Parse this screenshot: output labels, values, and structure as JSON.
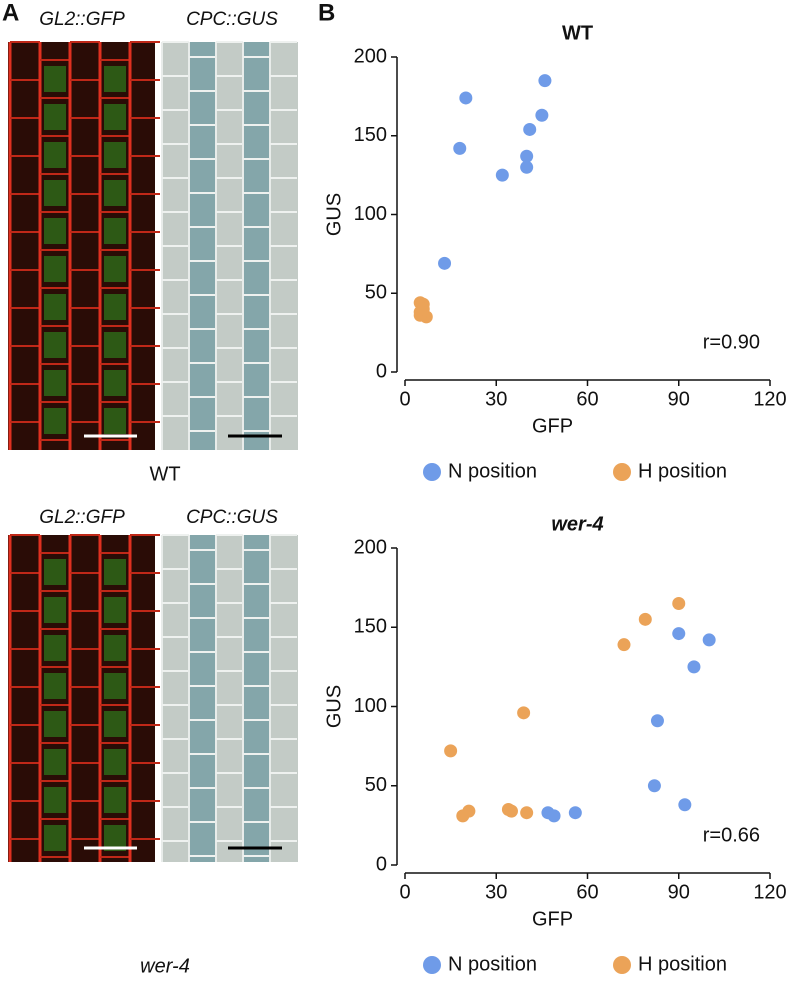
{
  "panel_labels": [
    "A",
    "B"
  ],
  "images": [
    {
      "labels": [
        "GL2::GFP",
        "CPC::GUS"
      ],
      "condition": "WT"
    },
    {
      "labels": [
        "GL2::GFP",
        "CPC::GUS"
      ],
      "condition": "wer-4"
    }
  ],
  "chart_data": [
    {
      "type": "scatter",
      "title": "WT",
      "x_label": "GFP",
      "y_label": "GUS",
      "xlim": [
        0,
        120
      ],
      "xticks": [
        0,
        30,
        60,
        90,
        120
      ],
      "ylim": [
        0,
        200
      ],
      "yticks": [
        0,
        50,
        100,
        150,
        200
      ],
      "annotation": "r=0.90",
      "series": [
        {
          "name": "N position",
          "color": "#6f9be8",
          "x": [
            13,
            18,
            20,
            32,
            40,
            40,
            41,
            45,
            46
          ],
          "values": [
            69,
            142,
            174,
            125,
            137,
            130,
            154,
            163,
            185
          ]
        },
        {
          "name": "H position",
          "color": "#eba358",
          "x": [
            5,
            6,
            5,
            7,
            5,
            6
          ],
          "values": [
            44,
            43,
            38,
            35,
            36,
            40
          ]
        }
      ]
    },
    {
      "type": "scatter",
      "title": "wer-4",
      "x_label": "GFP",
      "y_label": "GUS",
      "xlim": [
        0,
        120
      ],
      "xticks": [
        0,
        30,
        60,
        90,
        120
      ],
      "ylim": [
        0,
        200
      ],
      "yticks": [
        0,
        50,
        100,
        150,
        200
      ],
      "annotation": "r=0.66",
      "series": [
        {
          "name": "N position",
          "color": "#6f9be8",
          "x": [
            82,
            83,
            90,
            95,
            100,
            92,
            47,
            49,
            56
          ],
          "values": [
            50,
            91,
            146,
            125,
            142,
            38,
            33,
            31,
            33
          ]
        },
        {
          "name": "H position",
          "color": "#eba358",
          "x": [
            15,
            19,
            21,
            34,
            35,
            40,
            39,
            72,
            79,
            90
          ],
          "values": [
            72,
            31,
            34,
            35,
            34,
            33,
            96,
            139,
            155,
            165
          ]
        }
      ]
    }
  ]
}
